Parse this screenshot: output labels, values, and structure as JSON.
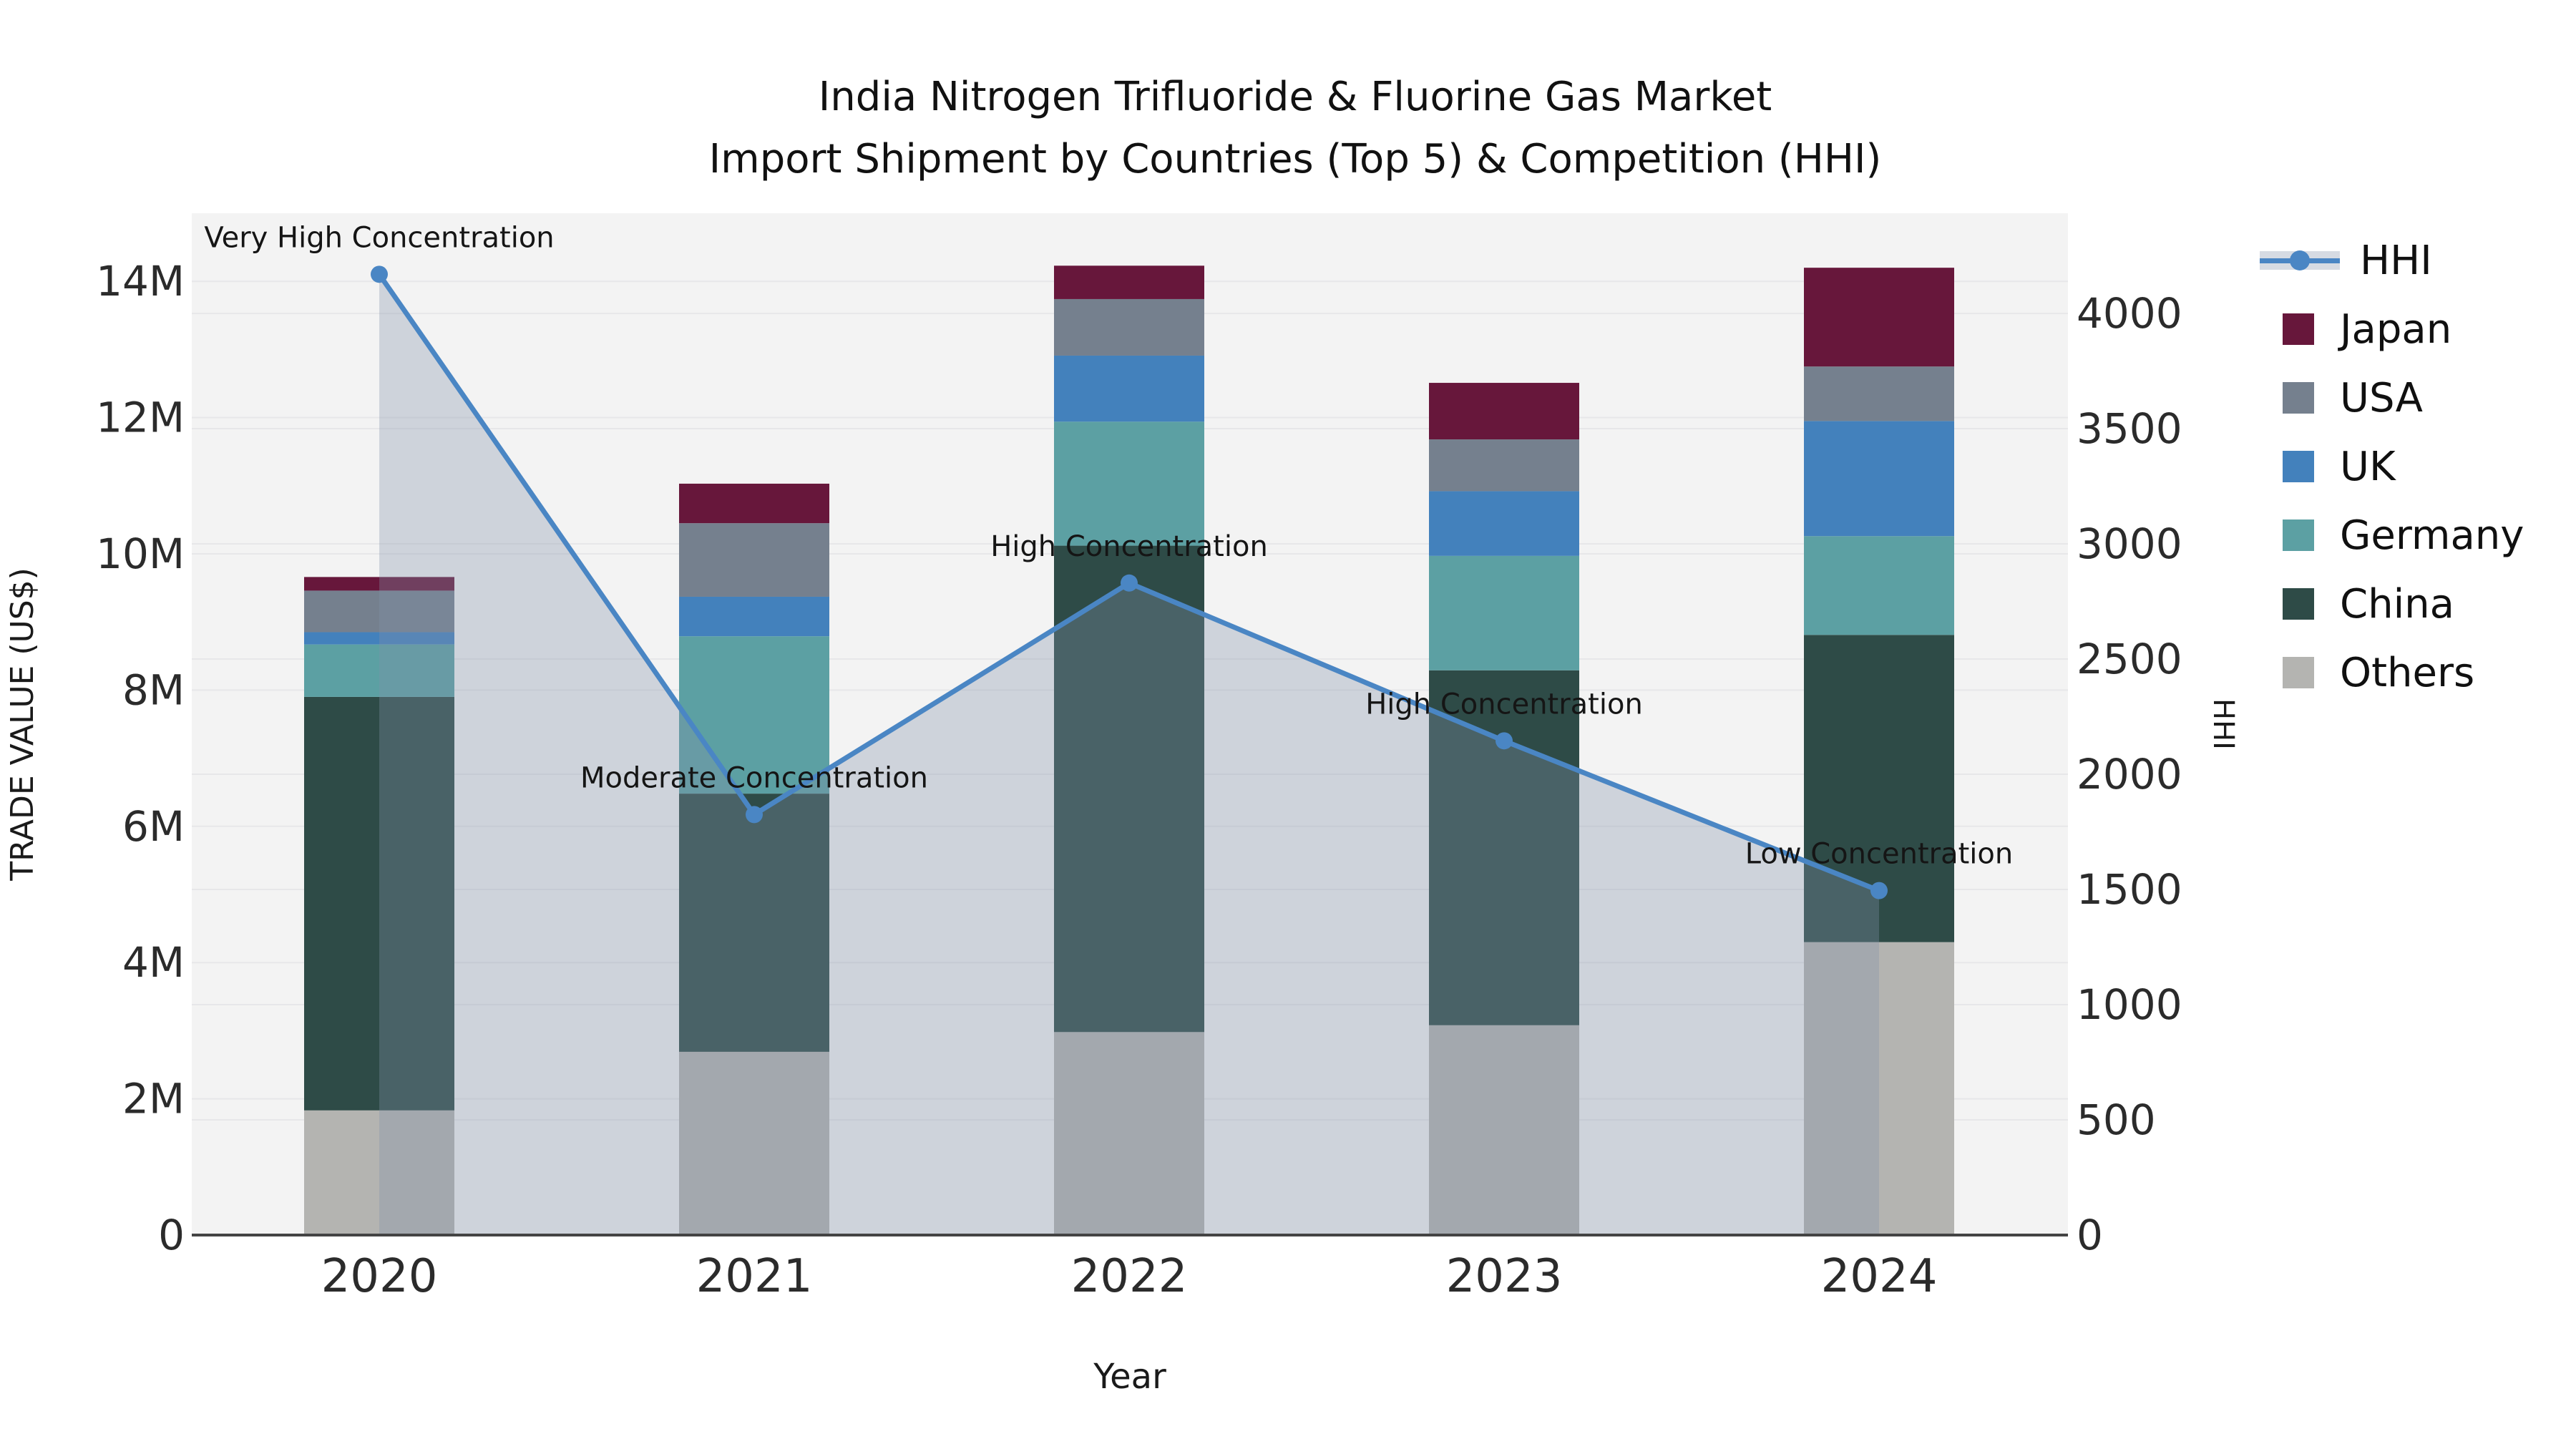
{
  "title_line1": "India Nitrogen Trifluoride & Fluorine Gas Market",
  "title_line2": "Import Shipment by Countries (Top 5) & Competition (HHI)",
  "chart_data": {
    "type": "bar+line",
    "categories": [
      "2020",
      "2021",
      "2022",
      "2023",
      "2024"
    ],
    "xlabel": "Year",
    "ylabel_left": "TRADE VALUE (US$)",
    "ylabel_right": "HHI",
    "ylim_left_musd": [
      0,
      15
    ],
    "ylim_right": [
      0,
      4435
    ],
    "grid": true,
    "plot_bg": "#f3f3f3",
    "yticks_left": {
      "values_musd": [
        0,
        2,
        4,
        6,
        8,
        10,
        12,
        14
      ],
      "labels": [
        "0",
        "2M",
        "4M",
        "6M",
        "8M",
        "10M",
        "12M",
        "14M"
      ]
    },
    "yticks_right": {
      "values": [
        0,
        500,
        1000,
        1500,
        2000,
        2500,
        3000,
        3500,
        4000
      ],
      "labels": [
        "0",
        "500",
        "1000",
        "1500",
        "2000",
        "2500",
        "3000",
        "3500",
        "4000"
      ]
    },
    "bar_series_bottom_to_top": [
      {
        "name": "Others",
        "color": "#b4b4b1",
        "values_musd": [
          1.83,
          2.69,
          2.98,
          3.08,
          4.3
        ]
      },
      {
        "name": "China",
        "color": "#2e4b47",
        "values_musd": [
          6.07,
          3.79,
          7.14,
          5.21,
          4.51
        ]
      },
      {
        "name": "Germany",
        "color": "#5ca0a3",
        "values_musd": [
          0.77,
          2.31,
          1.82,
          1.68,
          1.45
        ]
      },
      {
        "name": "UK",
        "color": "#4381bc",
        "values_musd": [
          0.18,
          0.58,
          0.97,
          0.95,
          1.69
        ]
      },
      {
        "name": "USA",
        "color": "#75808e",
        "values_musd": [
          0.61,
          1.08,
          0.83,
          0.76,
          0.8
        ]
      },
      {
        "name": "Japan",
        "color": "#67173b",
        "values_musd": [
          0.2,
          0.58,
          0.49,
          0.83,
          1.45
        ]
      }
    ],
    "bar_totals_musd": [
      9.66,
      11.03,
      14.23,
      12.51,
      14.2
    ],
    "line_series": {
      "name": "HHI",
      "values": [
        4170,
        1825,
        2830,
        2145,
        1495
      ],
      "color": "#4a86c4",
      "fill_color_rgba": "rgba(130,145,170,0.33)",
      "fill_to_zero": true
    },
    "annotations": [
      {
        "category": "2020",
        "text": "Very High Concentration"
      },
      {
        "category": "2021",
        "text": "Moderate Concentration"
      },
      {
        "category": "2022",
        "text": "High Concentration"
      },
      {
        "category": "2023",
        "text": "High Concentration"
      },
      {
        "category": "2024",
        "text": "Low Concentration"
      }
    ],
    "legend_order": [
      "HHI",
      "Japan",
      "USA",
      "UK",
      "Germany",
      "China",
      "Others"
    ],
    "legend_position": "right"
  },
  "colors": {
    "accent_line": "#4a86c4",
    "axis_line": "#444444",
    "grid_line": "#e7e7e9",
    "tick_text": "#2b2b2b",
    "title_text": "#111111"
  }
}
